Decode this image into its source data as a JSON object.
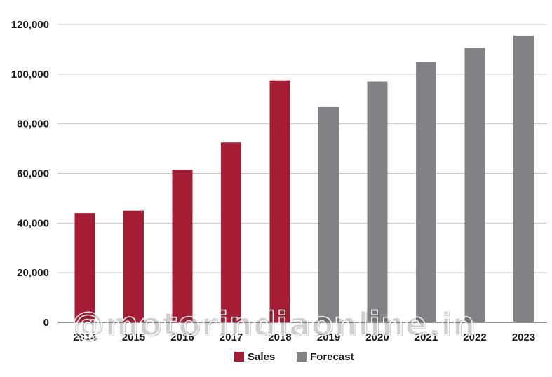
{
  "colors": {
    "sales": "#a51d35",
    "forecast": "#818285",
    "grid": "#c9c9c9",
    "axis": "#555555"
  },
  "watermark": "@motorindiaonline.in",
  "chart_data": {
    "type": "bar",
    "title": "",
    "xlabel": "",
    "ylabel": "",
    "ylim": [
      0,
      120000
    ],
    "yticks": [
      0,
      20000,
      40000,
      60000,
      80000,
      100000,
      120000
    ],
    "ytick_labels": [
      "0",
      "20,000",
      "40,000",
      "60,000",
      "80,000",
      "100,000",
      "120,000"
    ],
    "categories": [
      "2014",
      "2015",
      "2016",
      "2017",
      "2018",
      "2019",
      "2020",
      "2021",
      "2022",
      "2023"
    ],
    "series": [
      {
        "name": "Sales",
        "color": "#a51d35",
        "values": [
          44000,
          45000,
          61500,
          72500,
          97500,
          null,
          null,
          null,
          null,
          null
        ]
      },
      {
        "name": "Forecast",
        "color": "#818285",
        "values": [
          null,
          null,
          null,
          null,
          null,
          87000,
          97000,
          105000,
          110500,
          115500
        ]
      }
    ],
    "grid": true,
    "legend": {
      "placement": "bottom-center",
      "entries": [
        "Sales",
        "Forecast"
      ]
    }
  }
}
